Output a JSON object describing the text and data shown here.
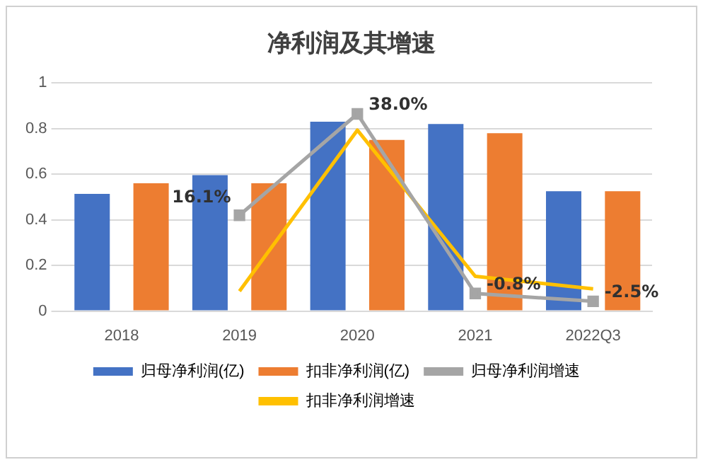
{
  "chart_data": {
    "type": "bar",
    "title": "净利润及其增速",
    "categories": [
      "2018",
      "2019",
      "2020",
      "2021",
      "2022Q3"
    ],
    "series": [
      {
        "name": "归母净利润(亿)",
        "color": "#4472c4",
        "values": [
          0.514,
          0.596,
          0.83,
          0.82,
          0.525
        ]
      },
      {
        "name": "扣非净利润(亿)",
        "color": "#ed7d31",
        "values": [
          0.56,
          0.56,
          0.75,
          0.78,
          0.525
        ]
      },
      {
        "name": "归母净利润增速",
        "type": "line",
        "axis": "y2",
        "color": "#a5a5a5",
        "marker": "square",
        "values": [
          null,
          16.1,
          38.0,
          -0.8,
          -2.5
        ],
        "value_labels": [
          null,
          "16.1%",
          "38.0%",
          "-0.8%",
          "-2.5%"
        ]
      },
      {
        "name": "扣非净利润增速",
        "type": "line",
        "axis": "y2",
        "color": "#ffc000",
        "marker": "none",
        "values": [
          null,
          -0.3,
          34.5,
          2.9,
          0.2
        ]
      }
    ],
    "ylim": [
      0,
      1
    ],
    "yticks": [
      0,
      {
        "value": 0.2,
        "label": "0.2"
      },
      {
        "value": 0.4,
        "label": "0.4"
      },
      {
        "value": 0.6,
        "label": "0.6"
      },
      {
        "value": 0.8,
        "label": "0.8"
      },
      1
    ],
    "y2lim": [
      -4.6,
      44.7
    ],
    "tick_labels": "x_y",
    "grid": "y",
    "legend": "bottom"
  }
}
